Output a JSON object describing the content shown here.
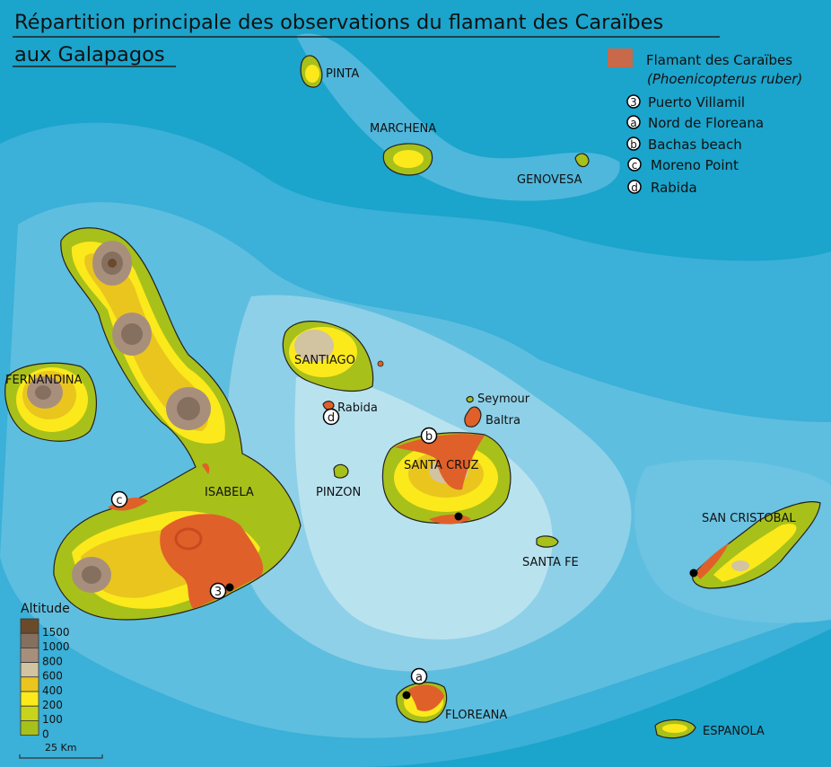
{
  "title": {
    "line1": "Répartition principale des observations du flamant des Caraïbes",
    "line2": "aux Galapagos"
  },
  "legend": {
    "species": "Flamant des Caraïbes",
    "species_latin": "(Phoenicopterus ruber)",
    "species_color": "#c8694a",
    "sites": [
      {
        "marker": "3",
        "label": "Puerto Villamil"
      },
      {
        "marker": "a",
        "label": "Nord de Floreana"
      },
      {
        "marker": "b",
        "label": "Bachas beach"
      },
      {
        "marker": "c",
        "label": "Moreno Point"
      },
      {
        "marker": "d",
        "label": "Rabida"
      }
    ]
  },
  "altitude_scale": {
    "title": "Altitude",
    "ticks": [
      "1500",
      "1000",
      "800",
      "600",
      "400",
      "200",
      "100",
      "0"
    ],
    "colors": [
      "#6b4a2a",
      "#857060",
      "#a88f7c",
      "#d2c3a1",
      "#eac51e",
      "#fbe91c",
      "#c8d41c",
      "#a8c01a"
    ]
  },
  "scale_bar": {
    "label": "25 Km"
  },
  "islands": {
    "pinta": "PINTA",
    "marchena": "MARCHENA",
    "genovesa": "GENOVESA",
    "fernandina": "FERNANDINA",
    "isabela": "ISABELA",
    "santiago": "SANTIAGO",
    "rabida": "Rabida",
    "seymour": "Seymour",
    "baltra": "Baltra",
    "pinzon": "PINZON",
    "santa_cruz": "SANTA CRUZ",
    "santa_fe": "SANTA FE",
    "san_cristobal": "SAN CRISTOBAL",
    "floreana": "FLOREANA",
    "espanola": "ESPANOLA"
  },
  "map_markers": [
    "3",
    "a",
    "b",
    "c",
    "d"
  ],
  "colors": {
    "sea_deep": "#1ba4cc",
    "sea_shallow": "#b9e2ef",
    "flamingo_area": "#e0602a"
  }
}
